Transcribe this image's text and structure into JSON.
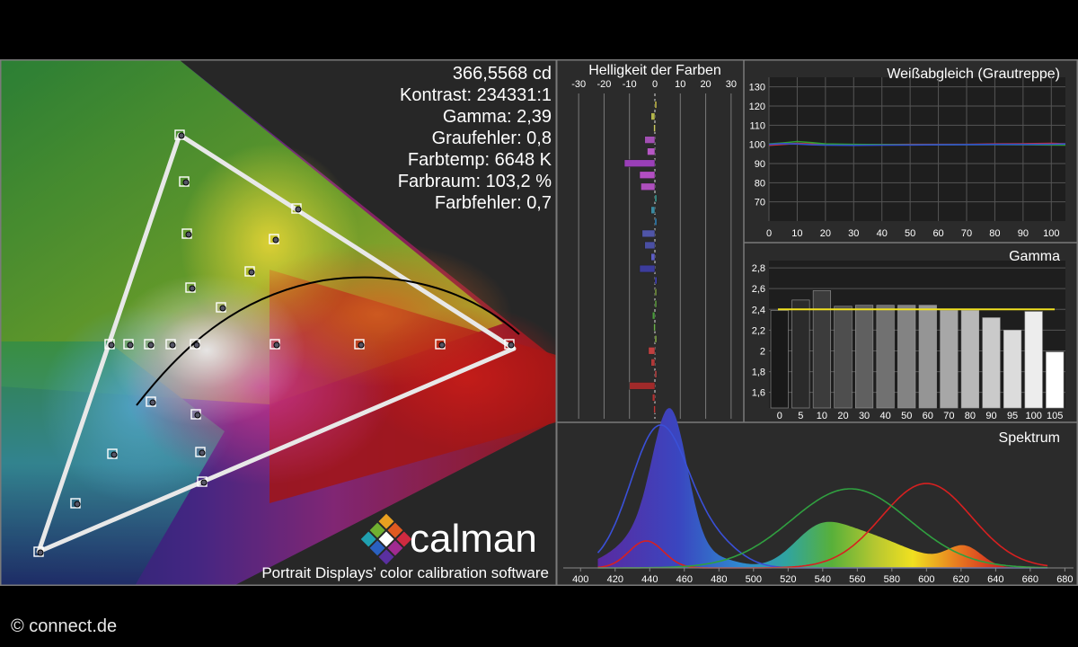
{
  "stats": {
    "luminance": "366,5568 cd",
    "contrast": "Kontrast: 234331:1",
    "gamma": "Gamma: 2,39",
    "gray_error": "Graufehler: 0,8",
    "color_temp": "Farbtemp: 6648 K",
    "gamut": "Farbraum: 103,2 %",
    "color_error": "Farbfehler: 0,7"
  },
  "branding": {
    "logo_text": "calman",
    "tagline": "Portrait Displays’ color calibration software",
    "credit": "© connect.de"
  },
  "chart_data": [
    {
      "type": "bar",
      "title": "Helligkeit der Farben",
      "x_ticks": [
        "-30",
        "-20",
        "-10",
        "0",
        "10",
        "20",
        "30"
      ],
      "xlim": [
        -35,
        35
      ],
      "bars": [
        {
          "value": 0.3,
          "color": "#c9c04a"
        },
        {
          "value": -1.5,
          "color": "#b2b54a"
        },
        {
          "value": -0.5,
          "color": "#c8c860"
        },
        {
          "value": -4.0,
          "color": "#a24fb3"
        },
        {
          "value": -3.0,
          "color": "#b657c4"
        },
        {
          "value": -12.0,
          "color": "#9a3fb8"
        },
        {
          "value": -6.0,
          "color": "#b24ec2"
        },
        {
          "value": -5.5,
          "color": "#ae4fbd"
        },
        {
          "value": 0.0,
          "color": "#3aa39a"
        },
        {
          "value": -1.5,
          "color": "#3a8aa0"
        },
        {
          "value": 0.5,
          "color": "#2f86c0"
        },
        {
          "value": -5.0,
          "color": "#5055a8"
        },
        {
          "value": -4.0,
          "color": "#4a4fa3"
        },
        {
          "value": -1.5,
          "color": "#5c5cc4"
        },
        {
          "value": -6.0,
          "color": "#3c3c9c"
        },
        {
          "value": 0.8,
          "color": "#4040b0"
        },
        {
          "value": 0.3,
          "color": "#7a9a40"
        },
        {
          "value": 0.0,
          "color": "#5fa040"
        },
        {
          "value": -1.0,
          "color": "#4a9a3c"
        },
        {
          "value": -0.5,
          "color": "#6ab04a"
        },
        {
          "value": 0.0,
          "color": "#88b04a"
        },
        {
          "value": -2.5,
          "color": "#c04040"
        },
        {
          "value": -1.5,
          "color": "#b03838"
        },
        {
          "value": 0.5,
          "color": "#c04444"
        },
        {
          "value": -10.0,
          "color": "#a02a2a"
        },
        {
          "value": -1.0,
          "color": "#b03232"
        },
        {
          "value": -0.5,
          "color": "#c03838"
        }
      ]
    },
    {
      "type": "line",
      "title": "Weißabgleich (Grautreppe)",
      "x_ticks": [
        "0",
        "10",
        "20",
        "30",
        "40",
        "50",
        "60",
        "70",
        "80",
        "90",
        "100"
      ],
      "y_ticks": [
        "130",
        "120",
        "110",
        "100",
        "90",
        "80",
        "70"
      ],
      "xlim": [
        0,
        105
      ],
      "ylim": [
        60,
        135
      ],
      "x": [
        0,
        5,
        10,
        15,
        20,
        30,
        40,
        50,
        60,
        70,
        80,
        90,
        100,
        105
      ],
      "series": [
        {
          "color": "#d03030",
          "values": [
            99.5,
            100,
            100.5,
            100.2,
            100,
            99.8,
            99.9,
            100,
            100,
            100,
            100.2,
            100.3,
            100.5,
            100.3
          ]
        },
        {
          "color": "#30a030",
          "values": [
            100.2,
            100.8,
            101.5,
            100.9,
            100.2,
            100,
            99.9,
            99.8,
            99.8,
            99.9,
            99.9,
            99.8,
            99.7,
            99.6
          ]
        },
        {
          "color": "#3050d0",
          "values": [
            100,
            100.4,
            100.2,
            99.8,
            99.6,
            99.5,
            99.6,
            99.7,
            99.8,
            99.9,
            100,
            100,
            100.1,
            100.2
          ]
        }
      ]
    },
    {
      "type": "bar",
      "title": "Gamma",
      "categories": [
        "0",
        "5",
        "10",
        "20",
        "30",
        "40",
        "50",
        "60",
        "70",
        "80",
        "90",
        "95",
        "100",
        "105"
      ],
      "values": [
        2.39,
        2.49,
        2.58,
        2.43,
        2.44,
        2.44,
        2.44,
        2.44,
        2.39,
        2.39,
        2.32,
        2.2,
        2.38,
        1.99
      ],
      "y_ticks": [
        "2,8",
        "2,6",
        "2,4",
        "2,2",
        "2",
        "1,8",
        "1,6"
      ],
      "ylim": [
        1.45,
        2.87
      ],
      "target": 2.4
    },
    {
      "type": "line",
      "title": "Spektrum",
      "x_ticks": [
        "400",
        "420",
        "440",
        "460",
        "480",
        "500",
        "520",
        "540",
        "560",
        "580",
        "600",
        "620",
        "640",
        "660",
        "680"
      ],
      "xlim": [
        390,
        685
      ]
    }
  ],
  "cie_points": {
    "targets": [
      [
        43,
        614
      ],
      [
        84,
        560
      ],
      [
        125,
        505
      ],
      [
        168,
        447
      ],
      [
        218,
        461
      ],
      [
        223,
        503
      ],
      [
        225,
        536
      ],
      [
        143,
        383
      ],
      [
        166,
        383
      ],
      [
        190,
        383
      ],
      [
        217,
        383
      ],
      [
        122,
        383
      ],
      [
        306,
        383
      ],
      [
        400,
        383
      ],
      [
        490,
        383
      ],
      [
        567,
        383
      ],
      [
        200,
        150
      ],
      [
        205,
        202
      ],
      [
        208,
        260
      ],
      [
        212,
        320
      ],
      [
        246,
        342
      ],
      [
        278,
        302
      ],
      [
        305,
        266
      ],
      [
        330,
        232
      ]
    ]
  },
  "colors": {
    "panel_bg": "#2b2b2b",
    "grid": "#6a6a6a",
    "gamma_target": "#f0e020"
  }
}
